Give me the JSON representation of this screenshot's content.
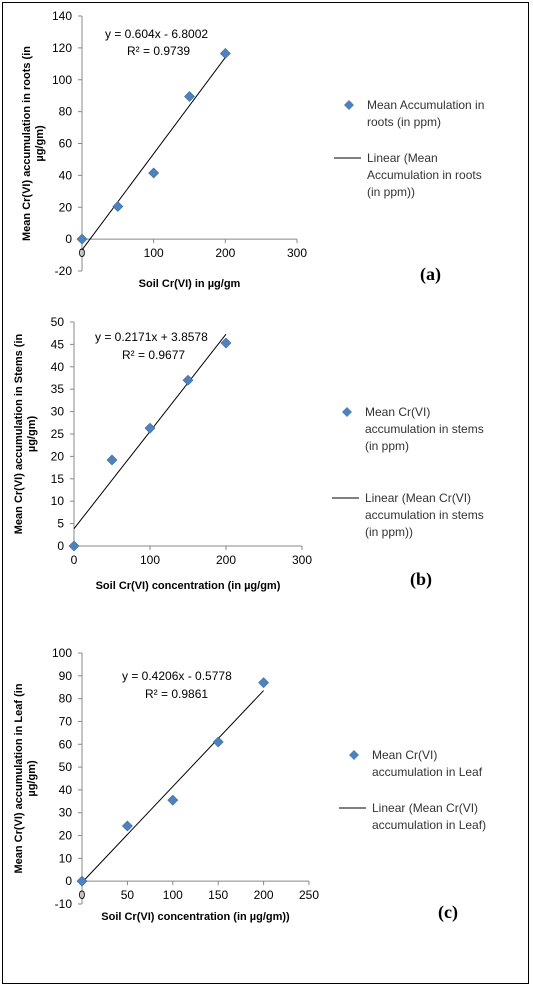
{
  "chart_data": [
    {
      "type": "scatter",
      "panel_label": "(a)",
      "xlabel": "Soil Cr(VI) in µg/gm",
      "ylabel": "Mean Cr(VI) accumulation in roots (in µg/gm)",
      "ylabel_lines": [
        "Mean Cr(VI) accumulation in roots (in",
        "µg/gm)"
      ],
      "xlim": [
        0,
        300
      ],
      "x_ticks": [
        0,
        100,
        200,
        300
      ],
      "ylim": [
        -20,
        140
      ],
      "y_ticks": [
        -20,
        0,
        20,
        40,
        60,
        80,
        100,
        120,
        140
      ],
      "series": [
        {
          "name": "Mean Accumulation in roots (in ppm)",
          "x": [
            0,
            50,
            100,
            150,
            200
          ],
          "y": [
            0,
            20.5,
            41.5,
            89.5,
            116.5
          ]
        }
      ],
      "trendline": {
        "name": "Linear (Mean Accumulation in roots (in ppm))",
        "slope": 0.604,
        "intercept": -6.8002,
        "x_range": [
          0,
          200
        ],
        "equation": "y = 0.604x - 6.8002",
        "r2": "R² = 0.9739"
      },
      "legend": {
        "marker_lines": [
          "Mean Accumulation in",
          "roots (in ppm)"
        ],
        "line_lines": [
          "Linear (Mean",
          "Accumulation in roots",
          "(in ppm))"
        ]
      },
      "marker_color": "#4f81bd",
      "legend_position": "right"
    },
    {
      "type": "scatter",
      "panel_label": "(b)",
      "xlabel": "Soil Cr(VI) concentration (in µg/gm)",
      "ylabel": "Mean Cr(VI) accumulation in Stems (in µg/gm)",
      "ylabel_lines": [
        "Mean Cr(VI) accumulation in Stems (in",
        "µg/gm)"
      ],
      "xlim": [
        0,
        300
      ],
      "x_ticks": [
        0,
        100,
        200,
        300
      ],
      "ylim": [
        0,
        50
      ],
      "y_ticks": [
        0,
        5,
        10,
        15,
        20,
        25,
        30,
        35,
        40,
        45,
        50
      ],
      "series": [
        {
          "name": "Mean Cr(VI) accumulation in stems (in ppm)",
          "x": [
            0,
            50,
            100,
            150,
            200
          ],
          "y": [
            0,
            19.2,
            26.3,
            37,
            45.3
          ]
        }
      ],
      "trendline": {
        "name": "Linear (Mean Cr(VI) accumulation in stems (in ppm))",
        "slope": 0.2171,
        "intercept": 3.8578,
        "x_range": [
          0,
          200
        ],
        "equation": "y = 0.2171x + 3.8578",
        "r2": "R² = 0.9677"
      },
      "legend": {
        "marker_lines": [
          "Mean Cr(VI)",
          "accumulation in stems",
          "(in ppm)"
        ],
        "line_lines": [
          "Linear (Mean Cr(VI)",
          "accumulation in stems",
          "(in ppm))"
        ]
      },
      "marker_color": "#4f81bd",
      "legend_position": "right"
    },
    {
      "type": "scatter",
      "panel_label": "(c)",
      "xlabel": "Soil Cr(VI) concentration (in µg/gm))",
      "ylabel": "Mean Cr(VI) accumulation in Leaf (in µg/gm)",
      "ylabel_lines": [
        "Mean Cr(VI) accumulation in Leaf (in",
        "µg/gm)"
      ],
      "xlim": [
        0,
        250
      ],
      "x_ticks": [
        0,
        50,
        100,
        150,
        200,
        250
      ],
      "ylim": [
        -10,
        100
      ],
      "y_ticks": [
        -10,
        0,
        10,
        20,
        30,
        40,
        50,
        60,
        70,
        80,
        90,
        100
      ],
      "series": [
        {
          "name": "Mean Cr(VI) accumulation in Leaf",
          "x": [
            0,
            50,
            100,
            150,
            200
          ],
          "y": [
            0,
            24.2,
            35.5,
            61,
            87
          ]
        }
      ],
      "trendline": {
        "name": "Linear (Mean Cr(VI) accumulation in Leaf)",
        "slope": 0.4206,
        "intercept": -0.5778,
        "x_range": [
          0,
          200
        ],
        "equation": "y = 0.4206x - 0.5778",
        "r2": "R² = 0.9861"
      },
      "legend": {
        "marker_lines": [
          "Mean Cr(VI)",
          "accumulation in Leaf"
        ],
        "line_lines": [
          "Linear (Mean Cr(VI)",
          "accumulation in Leaf)"
        ]
      },
      "marker_color": "#4f81bd",
      "legend_position": "right"
    }
  ]
}
